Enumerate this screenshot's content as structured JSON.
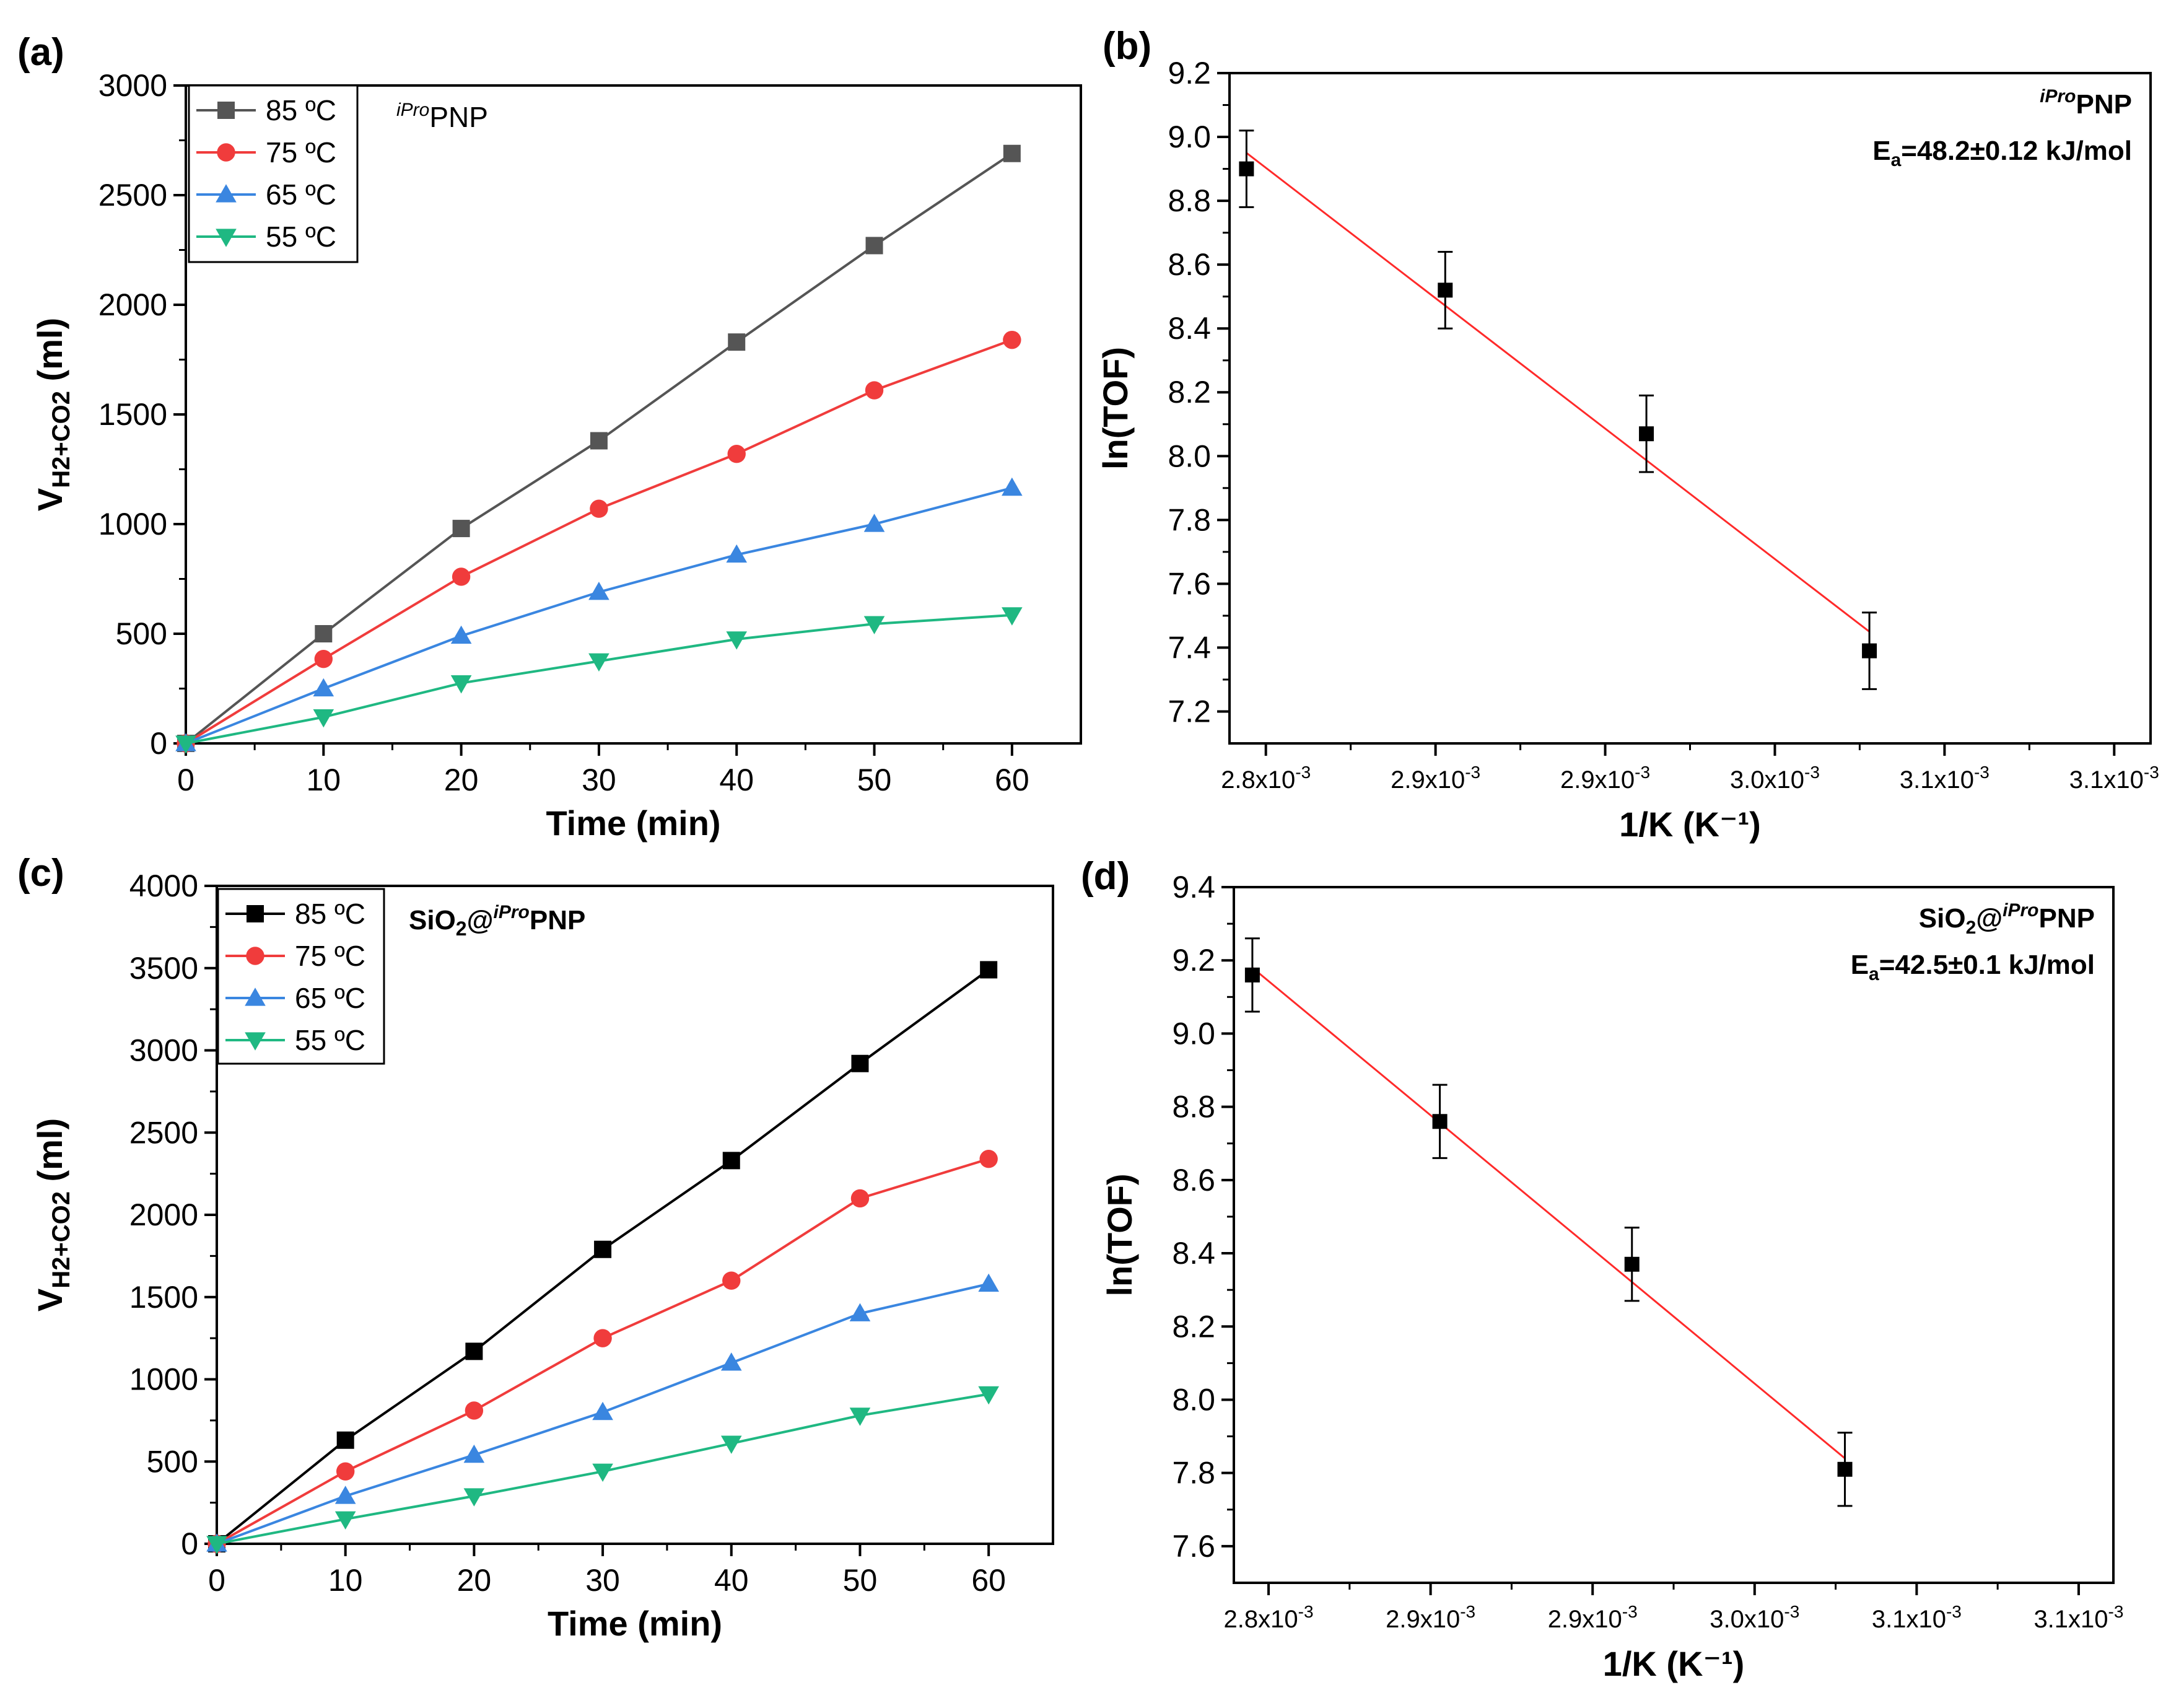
{
  "chart_data": [
    {
      "panel": "(a)",
      "type": "line",
      "xlabel": "Time (min)",
      "ylabel_main": "V",
      "ylabel_sub": "H2+CO2",
      "ylabel_unit": " (ml)",
      "annotation": {
        "sup": "iPro",
        "main": "PNP"
      },
      "xlim": [
        0,
        65
      ],
      "ylim": [
        0,
        3000
      ],
      "xticks": [
        0,
        10,
        20,
        30,
        40,
        50,
        60
      ],
      "yticks": [
        0,
        500,
        1000,
        1500,
        2000,
        2500,
        3000
      ],
      "x": [
        0,
        10,
        20,
        30,
        40,
        50,
        60
      ],
      "series": [
        {
          "name": "85 ºC",
          "color": "#555555",
          "marker": "square",
          "values": [
            0,
            500,
            980,
            1380,
            1830,
            2270,
            2690
          ]
        },
        {
          "name": "75 ºC",
          "color": "#f03c3c",
          "marker": "circle",
          "values": [
            0,
            385,
            760,
            1070,
            1320,
            1610,
            1840
          ]
        },
        {
          "name": "65 ºC",
          "color": "#3a86e0",
          "marker": "triangle-up",
          "values": [
            0,
            250,
            490,
            690,
            860,
            1000,
            1165
          ]
        },
        {
          "name": "55 ºC",
          "color": "#1fb882",
          "marker": "triangle-down",
          "values": [
            0,
            120,
            275,
            375,
            475,
            545,
            585
          ]
        }
      ]
    },
    {
      "panel": "(b)",
      "type": "scatter",
      "xlabel": "1/K (K⁻¹)",
      "ylabel": "ln(TOF)",
      "annotation": {
        "sup": "iPro",
        "main": "PNP",
        "ea_prefix": "E",
        "ea_sub": "a",
        "ea_value": "=48.2±0.12 kJ/mol"
      },
      "xlim": [
        0.002785,
        0.003165
      ],
      "ylim": [
        7.1,
        9.2
      ],
      "xticks": [
        {
          "value": 0.0028,
          "label": "2.8x10",
          "exp": "-3"
        },
        {
          "value": 0.00287,
          "label": "2.9x10",
          "exp": "-3"
        },
        {
          "value": 0.00294,
          "label": "2.9x10",
          "exp": "-3"
        },
        {
          "value": 0.00301,
          "label": "3.0x10",
          "exp": "-3"
        },
        {
          "value": 0.00308,
          "label": "3.1x10",
          "exp": "-3"
        },
        {
          "value": 0.00315,
          "label": "3.1x10",
          "exp": "-3"
        }
      ],
      "yticks": [
        7.2,
        7.4,
        7.6,
        7.8,
        8.0,
        8.2,
        8.4,
        8.6,
        8.8,
        9.0,
        9.2
      ],
      "ytick_labels": [
        "7.2",
        "7.4",
        "7.6",
        "7.8",
        "8.0",
        "8.2",
        "8.4",
        "8.6",
        "8.8",
        "9.0",
        "9.2"
      ],
      "points": [
        {
          "x": 0.002792,
          "y": 8.9,
          "err": 0.12
        },
        {
          "x": 0.002874,
          "y": 8.52,
          "err": 0.12
        },
        {
          "x": 0.002957,
          "y": 8.07,
          "err": 0.12
        },
        {
          "x": 0.003049,
          "y": 7.39,
          "err": 0.12
        }
      ],
      "fit": {
        "x": [
          0.002792,
          0.003049
        ],
        "y": [
          8.95,
          7.45
        ],
        "color": "#ff2a2a"
      }
    },
    {
      "panel": "(c)",
      "type": "line",
      "xlabel": "Time (min)",
      "ylabel_main": "V",
      "ylabel_sub": "H2+CO2",
      "ylabel_unit": " (ml)",
      "annotation": {
        "pre": "SiO",
        "pre_sub": "2",
        "at": "@",
        "sup": "iPro",
        "main": "PNP"
      },
      "xlim": [
        0,
        65
      ],
      "ylim": [
        0,
        4000
      ],
      "xticks": [
        0,
        10,
        20,
        30,
        40,
        50,
        60
      ],
      "yticks": [
        0,
        500,
        1000,
        1500,
        2000,
        2500,
        3000,
        3500,
        4000
      ],
      "x": [
        0,
        10,
        20,
        30,
        40,
        50,
        60
      ],
      "series": [
        {
          "name": "85 ºC",
          "color": "#000000",
          "marker": "square",
          "values": [
            0,
            630,
            1170,
            1790,
            2330,
            2920,
            3490
          ]
        },
        {
          "name": "75 ºC",
          "color": "#f03c3c",
          "marker": "circle",
          "values": [
            0,
            440,
            810,
            1250,
            1600,
            2100,
            2340
          ]
        },
        {
          "name": "65 ºC",
          "color": "#3a86e0",
          "marker": "triangle-up",
          "values": [
            0,
            290,
            540,
            800,
            1100,
            1400,
            1580
          ]
        },
        {
          "name": "55 ºC",
          "color": "#1fb882",
          "marker": "triangle-down",
          "values": [
            0,
            150,
            290,
            440,
            610,
            780,
            910
          ]
        }
      ]
    },
    {
      "panel": "(d)",
      "type": "scatter",
      "xlabel": "1/K (K⁻¹)",
      "ylabel": "ln(TOF)",
      "annotation": {
        "pre": "SiO",
        "pre_sub": "2",
        "at": "@",
        "sup": "iPro",
        "main": "PNP",
        "ea_prefix": "E",
        "ea_sub": "a",
        "ea_value": "=42.5±0.1 kJ/mol"
      },
      "xlim": [
        0.002785,
        0.003165
      ],
      "ylim": [
        7.5,
        9.4
      ],
      "xticks": [
        {
          "value": 0.0028,
          "label": "2.8x10",
          "exp": "-3"
        },
        {
          "value": 0.00287,
          "label": "2.9x10",
          "exp": "-3"
        },
        {
          "value": 0.00294,
          "label": "2.9x10",
          "exp": "-3"
        },
        {
          "value": 0.00301,
          "label": "3.0x10",
          "exp": "-3"
        },
        {
          "value": 0.00308,
          "label": "3.1x10",
          "exp": "-3"
        },
        {
          "value": 0.00315,
          "label": "3.1x10",
          "exp": "-3"
        }
      ],
      "yticks": [
        7.6,
        7.8,
        8.0,
        8.2,
        8.4,
        8.6,
        8.8,
        9.0,
        9.2,
        9.4
      ],
      "ytick_labels": [
        "7.6",
        "7.8",
        "8.0",
        "8.2",
        "8.4",
        "8.6",
        "8.8",
        "9.0",
        "9.2",
        "9.4"
      ],
      "points": [
        {
          "x": 0.002793,
          "y": 9.16,
          "err": 0.1
        },
        {
          "x": 0.002874,
          "y": 8.76,
          "err": 0.1
        },
        {
          "x": 0.002957,
          "y": 8.37,
          "err": 0.1
        },
        {
          "x": 0.003049,
          "y": 7.81,
          "err": 0.1
        }
      ],
      "fit": {
        "x": [
          0.002793,
          0.003049
        ],
        "y": [
          9.18,
          7.84
        ],
        "color": "#ff2a2a"
      }
    }
  ]
}
